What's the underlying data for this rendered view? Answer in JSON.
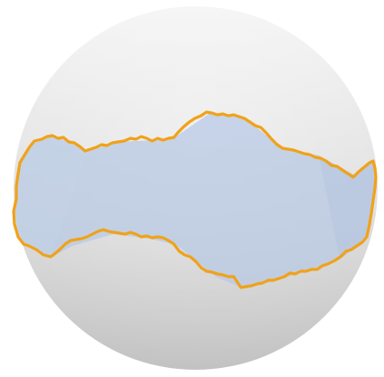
{
  "scene": {
    "description_label": "",
    "colors": {
      "background": "#ffffff",
      "sphere_light": "#f4f4f4",
      "sphere_mid": "#dedede",
      "sphere_dark": "#c2c2c2",
      "region_fill": "#b8c9e4",
      "region_fill_opacity": "0.75",
      "region_stroke": "#f0a21a"
    },
    "elements": {
      "sphere": "sphere",
      "shaded_region": "shaded-region",
      "boundary_curve": "boundary-curve"
    }
  }
}
